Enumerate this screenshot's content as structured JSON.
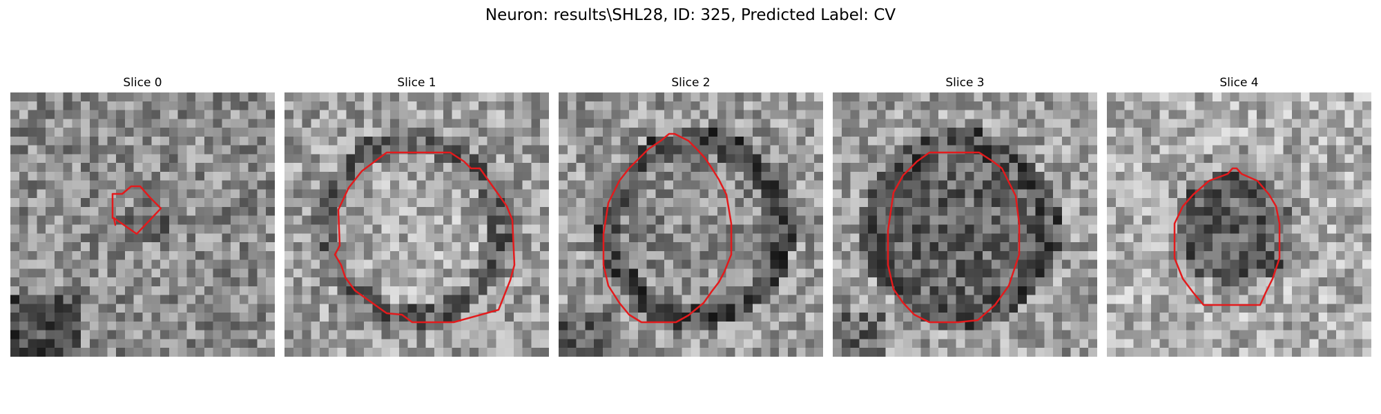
{
  "figure": {
    "title": "Neuron: results\\SHL28, ID: 325, Predicted Label: CV",
    "contour_color": "#e31a1c"
  },
  "slices": [
    {
      "title": "Slice 0",
      "image": "grayscale-microscopy-patch",
      "contour": "red-roi-outline"
    },
    {
      "title": "Slice 1",
      "image": "grayscale-microscopy-patch",
      "contour": "red-roi-outline"
    },
    {
      "title": "Slice 2",
      "image": "grayscale-microscopy-patch",
      "contour": "red-roi-outline"
    },
    {
      "title": "Slice 3",
      "image": "grayscale-microscopy-patch",
      "contour": "red-roi-outline"
    },
    {
      "title": "Slice 4",
      "image": "grayscale-microscopy-patch",
      "contour": "red-roi-outline"
    }
  ]
}
